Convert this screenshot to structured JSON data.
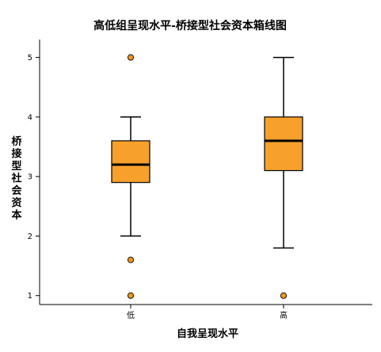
{
  "chart_data": {
    "type": "box",
    "title": "高低组呈现水平-桥接型社会资本箱线图",
    "xlabel": "自我呈现水平",
    "ylabel": "桥接型社会资本",
    "categories": [
      "低",
      "高"
    ],
    "ylim": [
      0.85,
      5.3
    ],
    "yticks": [
      "1",
      "2",
      "3",
      "4",
      "5"
    ],
    "grid": false,
    "legend": "none",
    "boxes": [
      {
        "category": "低",
        "whisker_low": 2.0,
        "q1": 2.9,
        "median": 3.2,
        "q3": 3.6,
        "whisker_high": 4.0,
        "outliers": [
          5.0,
          1.6,
          1.0
        ]
      },
      {
        "category": "高",
        "whisker_low": 1.8,
        "q1": 3.1,
        "median": 3.6,
        "q3": 4.0,
        "whisker_high": 5.0,
        "outliers": [
          1.0
        ]
      }
    ],
    "colors": {
      "box_fill": "#f7a02b",
      "box_stroke": "#000000",
      "outlier_fill": "#f0961d",
      "axis": "#000000"
    }
  }
}
